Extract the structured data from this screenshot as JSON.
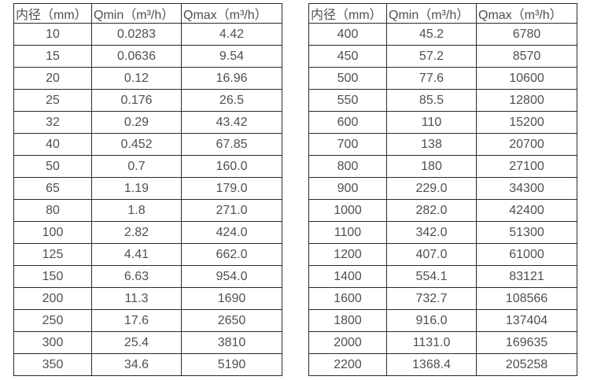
{
  "page": {
    "background_color": "#ffffff",
    "text_color": "#4f4f4f",
    "border_color": "#2a2a2a"
  },
  "tables": [
    {
      "name": "flow-spec-table-small-diameters",
      "headers": [
        "内径（mm）",
        "Qmin（m³/h）",
        "Qmax（m³/h）"
      ],
      "rows": [
        [
          "10",
          "0.0283",
          "4.42"
        ],
        [
          "15",
          "0.0636",
          "9.54"
        ],
        [
          "20",
          "0.12",
          "16.96"
        ],
        [
          "25",
          "0.176",
          "26.5"
        ],
        [
          "32",
          "0.29",
          "43.42"
        ],
        [
          "40",
          "0.452",
          "67.85"
        ],
        [
          "50",
          "0.7",
          "160.0"
        ],
        [
          "65",
          "1.19",
          "179.0"
        ],
        [
          "80",
          "1.8",
          "271.0"
        ],
        [
          "100",
          "2.82",
          "424.0"
        ],
        [
          "125",
          "4.41",
          "662.0"
        ],
        [
          "150",
          "6.63",
          "954.0"
        ],
        [
          "200",
          "11.3",
          "1690"
        ],
        [
          "250",
          "17.6",
          "2650"
        ],
        [
          "300",
          "25.4",
          "3810"
        ],
        [
          "350",
          "34.6",
          "5190"
        ]
      ]
    },
    {
      "name": "flow-spec-table-large-diameters",
      "headers": [
        "内径（mm）",
        "Qmin（m³/h）",
        "Qmax（m³/h）"
      ],
      "rows": [
        [
          "400",
          "45.2",
          "6780"
        ],
        [
          "450",
          "57.2",
          "8570"
        ],
        [
          "500",
          "77.6",
          "10600"
        ],
        [
          "550",
          "85.5",
          "12800"
        ],
        [
          "600",
          "110",
          "15200"
        ],
        [
          "700",
          "138",
          "20700"
        ],
        [
          "800",
          "180",
          "27100"
        ],
        [
          "900",
          "229.0",
          "34300"
        ],
        [
          "1000",
          "282.0",
          "42400"
        ],
        [
          "1100",
          "342.0",
          "51300"
        ],
        [
          "1200",
          "407.0",
          "61000"
        ],
        [
          "1400",
          "554.1",
          "83121"
        ],
        [
          "1600",
          "732.7",
          "108566"
        ],
        [
          "1800",
          "916.0",
          "137404"
        ],
        [
          "2000",
          "1131.0",
          "169635"
        ],
        [
          "2200",
          "1368.4",
          "205258"
        ]
      ]
    }
  ]
}
